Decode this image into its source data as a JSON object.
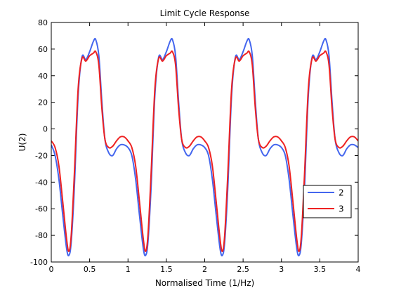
{
  "chart_data": {
    "type": "line",
    "title": "Limit Cycle Response",
    "xlabel": "Normalised Time (1/Hz)",
    "ylabel": "U(2)",
    "xlim": [
      0,
      4
    ],
    "ylim": [
      -100,
      80
    ],
    "xticks": [
      0,
      0.5,
      1,
      1.5,
      2,
      2.5,
      3,
      3.5,
      4
    ],
    "xtick_labels": [
      "0",
      "0.5",
      "1",
      "1.5",
      "2",
      "2.5",
      "3",
      "3.5",
      "4"
    ],
    "yticks": [
      -100,
      -80,
      -60,
      -40,
      -20,
      0,
      20,
      40,
      60,
      80
    ],
    "ytick_labels": [
      "-100",
      "-80",
      "-60",
      "-40",
      "-20",
      "0",
      "20",
      "40",
      "60",
      "80"
    ],
    "grid": false,
    "legend_position": "lower-right",
    "series": [
      {
        "name": "2",
        "color": "#4466ee",
        "x": [
          0,
          0.05,
          0.1,
          0.15,
          0.2,
          0.23,
          0.26,
          0.3,
          0.35,
          0.4,
          0.45,
          0.5,
          0.55,
          0.58,
          0.62,
          0.66,
          0.7,
          0.75,
          0.8,
          0.85,
          0.9,
          0.95,
          1.0,
          1.05,
          1.1,
          1.15,
          1.2,
          1.23,
          1.26,
          1.3,
          1.35,
          1.4,
          1.45,
          1.5,
          1.55,
          1.58,
          1.62,
          1.66,
          1.7,
          1.75,
          1.8,
          1.85,
          1.9,
          1.95,
          2.0,
          2.05,
          2.1,
          2.15,
          2.2,
          2.23,
          2.26,
          2.3,
          2.35,
          2.4,
          2.45,
          2.5,
          2.55,
          2.58,
          2.62,
          2.66,
          2.7,
          2.75,
          2.8,
          2.85,
          2.9,
          2.95,
          3.0,
          3.05,
          3.1,
          3.15,
          3.2,
          3.23,
          3.26,
          3.3,
          3.35,
          3.4,
          3.45,
          3.5,
          3.55,
          3.58,
          3.62,
          3.66,
          3.7,
          3.75,
          3.8,
          3.85,
          3.9,
          3.95,
          4.0
        ],
        "y": [
          -12,
          -20,
          -38,
          -65,
          -90,
          -95,
          -85,
          -45,
          25,
          54,
          52,
          58,
          66,
          67,
          55,
          20,
          -8,
          -18,
          -20,
          -15,
          -12,
          -12,
          -14,
          -20,
          -38,
          -65,
          -90,
          -95,
          -85,
          -45,
          25,
          54,
          52,
          58,
          66,
          67,
          55,
          20,
          -8,
          -18,
          -20,
          -15,
          -12,
          -12,
          -14,
          -20,
          -38,
          -65,
          -90,
          -95,
          -85,
          -45,
          25,
          54,
          52,
          58,
          66,
          67,
          55,
          20,
          -8,
          -18,
          -20,
          -15,
          -12,
          -12,
          -14,
          -20,
          -38,
          -65,
          -90,
          -95,
          -85,
          -45,
          25,
          54,
          52,
          58,
          66,
          67,
          55,
          20,
          -8,
          -18,
          -20,
          -15,
          -12,
          -12,
          -14
        ]
      },
      {
        "name": "3",
        "color": "#ee2222",
        "x": [
          0,
          0.05,
          0.1,
          0.15,
          0.2,
          0.23,
          0.26,
          0.3,
          0.35,
          0.4,
          0.45,
          0.5,
          0.55,
          0.58,
          0.62,
          0.66,
          0.7,
          0.75,
          0.8,
          0.85,
          0.9,
          0.95,
          1.0,
          1.05,
          1.1,
          1.15,
          1.2,
          1.23,
          1.26,
          1.3,
          1.35,
          1.4,
          1.45,
          1.5,
          1.55,
          1.58,
          1.62,
          1.66,
          1.7,
          1.75,
          1.8,
          1.85,
          1.9,
          1.95,
          2.0,
          2.05,
          2.1,
          2.15,
          2.2,
          2.23,
          2.26,
          2.3,
          2.35,
          2.4,
          2.45,
          2.5,
          2.55,
          2.58,
          2.62,
          2.66,
          2.7,
          2.75,
          2.8,
          2.85,
          2.9,
          2.95,
          3.0,
          3.05,
          3.1,
          3.15,
          3.2,
          3.23,
          3.26,
          3.3,
          3.35,
          3.4,
          3.45,
          3.5,
          3.55,
          3.58,
          3.62,
          3.66,
          3.7,
          3.75,
          3.8,
          3.85,
          3.9,
          3.95,
          4.0
        ],
        "y": [
          -9,
          -14,
          -28,
          -55,
          -83,
          -92,
          -80,
          -35,
          30,
          53,
          51,
          55,
          57,
          58,
          48,
          15,
          -8,
          -14,
          -13,
          -9,
          -6,
          -6,
          -9,
          -14,
          -28,
          -55,
          -83,
          -92,
          -80,
          -35,
          30,
          53,
          51,
          55,
          57,
          58,
          48,
          15,
          -8,
          -14,
          -13,
          -9,
          -6,
          -6,
          -9,
          -14,
          -28,
          -55,
          -83,
          -92,
          -80,
          -35,
          30,
          53,
          51,
          55,
          57,
          58,
          48,
          15,
          -8,
          -14,
          -13,
          -9,
          -6,
          -6,
          -9,
          -14,
          -28,
          -55,
          -83,
          -92,
          -80,
          -35,
          30,
          53,
          51,
          55,
          57,
          58,
          48,
          15,
          -8,
          -14,
          -13,
          -9,
          -6,
          -6,
          -9
        ]
      }
    ]
  }
}
